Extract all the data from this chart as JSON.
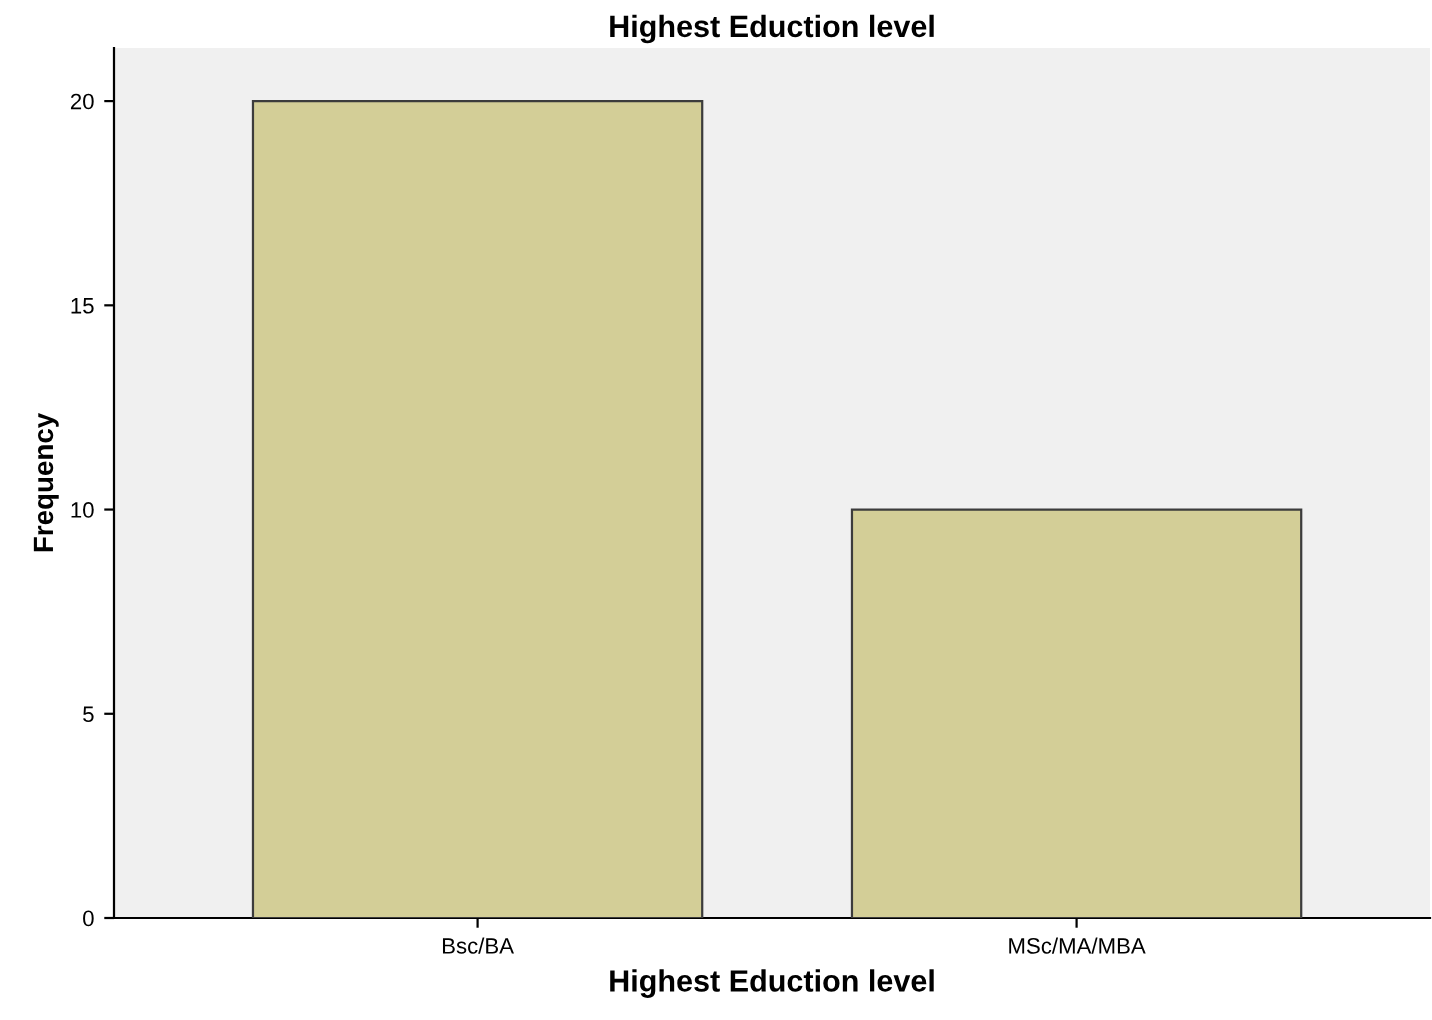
{
  "chart_data": {
    "type": "bar",
    "title": "Highest Eduction level",
    "xlabel": "Highest Eduction level",
    "ylabel": "Frequency",
    "categories": [
      "Bsc/BA",
      "MSc/MA/MBA"
    ],
    "values": [
      20,
      10
    ],
    "color": "#d3ce97",
    "ylim": [
      0,
      21.3
    ],
    "yticks": [
      0,
      5,
      10,
      15,
      20
    ],
    "grid": false,
    "legend": false
  }
}
